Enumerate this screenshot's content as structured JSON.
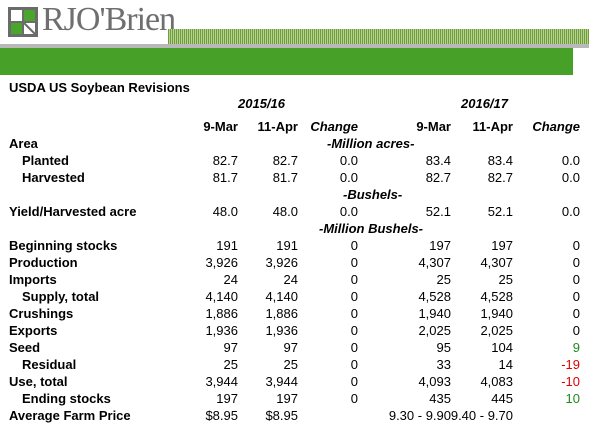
{
  "logo": {
    "brand": "RJO'Brien",
    "icon": "rjo-logo-mark"
  },
  "title": "USDA US Soybean Revisions",
  "years": {
    "a": "2015/16",
    "b": "2016/17"
  },
  "columns": [
    "9-Mar",
    "11-Apr",
    "Change",
    "9-Mar",
    "11-Apr",
    "Change"
  ],
  "units": {
    "acres": "-Million acres-",
    "bushels": "-Bushels-",
    "million_bushels": "-Million Bushels-"
  },
  "rows": {
    "area": {
      "label": "Area"
    },
    "planted": {
      "label": "Planted",
      "v": [
        "82.7",
        "82.7",
        "0.0",
        "83.4",
        "83.4",
        "0.0"
      ]
    },
    "harvested": {
      "label": "Harvested",
      "v": [
        "81.7",
        "81.7",
        "0.0",
        "82.7",
        "82.7",
        "0.0"
      ]
    },
    "yield": {
      "label": "Yield/Harvested acre",
      "v": [
        "48.0",
        "48.0",
        "0.0",
        "52.1",
        "52.1",
        "0.0"
      ]
    },
    "beginning": {
      "label": "Beginning stocks",
      "v": [
        "191",
        "191",
        "0",
        "197",
        "197",
        "0"
      ]
    },
    "production": {
      "label": "Production",
      "v": [
        "3,926",
        "3,926",
        "0",
        "4,307",
        "4,307",
        "0"
      ]
    },
    "imports": {
      "label": "Imports",
      "v": [
        "24",
        "24",
        "0",
        "25",
        "25",
        "0"
      ]
    },
    "supply": {
      "label": "Supply, total",
      "v": [
        "4,140",
        "4,140",
        "0",
        "4,528",
        "4,528",
        "0"
      ]
    },
    "crushings": {
      "label": "Crushings",
      "v": [
        "1,886",
        "1,886",
        "0",
        "1,940",
        "1,940",
        "0"
      ]
    },
    "exports": {
      "label": "Exports",
      "v": [
        "1,936",
        "1,936",
        "0",
        "2,025",
        "2,025",
        "0"
      ]
    },
    "seed": {
      "label": "Seed",
      "v": [
        "97",
        "97",
        "0",
        "95",
        "104",
        "9"
      ]
    },
    "residual": {
      "label": "Residual",
      "v": [
        "25",
        "25",
        "0",
        "33",
        "14",
        "-19"
      ]
    },
    "use": {
      "label": "Use, total",
      "v": [
        "3,944",
        "3,944",
        "0",
        "4,093",
        "4,083",
        "-10"
      ]
    },
    "ending": {
      "label": "Ending stocks",
      "v": [
        "197",
        "197",
        "0",
        "435",
        "445",
        "10"
      ]
    },
    "price": {
      "label": "Average Farm Price",
      "v": [
        "$8.95",
        "$8.95",
        "9.30 - 9.90",
        "9.40 - 9.70"
      ]
    }
  },
  "colors": {
    "green_band": "#47a128",
    "positive": "#1d8a1d",
    "negative": "#e00000"
  }
}
